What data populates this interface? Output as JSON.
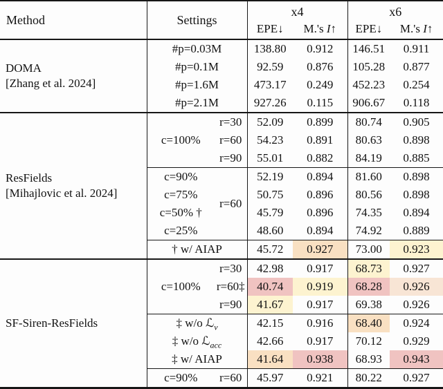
{
  "header": {
    "method": "Method",
    "settings": "Settings",
    "scale4": "x4",
    "scale6": "x6",
    "epe": "EPE↓",
    "m_pre": "M.'s ",
    "m_italic": "I",
    "m_arrow": "↑"
  },
  "methods": [
    {
      "name": "DOMA",
      "cite": "[Zhang et al. 2024]"
    },
    {
      "name": "ResFields",
      "cite": "[Mihajlovic et al. 2024]"
    },
    {
      "name": "SF-Siren-ResFields",
      "cite": ""
    }
  ],
  "spans": {
    "res_c100": "c=100%",
    "res_r60": "r=60",
    "sf_c100": "c=100%"
  },
  "rows": [
    {
      "set": "#p=0.03M",
      "epe4": "138.80",
      "m4": "0.912",
      "epe6": "146.51",
      "m6": "0.911"
    },
    {
      "set": "#p=0.1M",
      "epe4": "92.59",
      "m4": "0.876",
      "epe6": "105.28",
      "m6": "0.877"
    },
    {
      "set": "#p=1.6M",
      "epe4": "473.17",
      "m4": "0.249",
      "epe6": "452.23",
      "m6": "0.254"
    },
    {
      "set": "#p=2.1M",
      "epe4": "927.26",
      "m4": "0.115",
      "epe6": "906.67",
      "m6": "0.118"
    },
    {
      "setr": "r=30",
      "epe4": "52.09",
      "m4": "0.899",
      "epe6": "80.74",
      "m6": "0.905"
    },
    {
      "setr": "r=60",
      "epe4": "54.23",
      "m4": "0.891",
      "epe6": "80.63",
      "m6": "0.898"
    },
    {
      "setr": "r=90",
      "epe4": "55.01",
      "m4": "0.882",
      "epe6": "84.19",
      "m6": "0.885"
    },
    {
      "setc": "c=90%",
      "epe4": "52.19",
      "m4": "0.894",
      "epe6": "81.60",
      "m6": "0.898"
    },
    {
      "setc": "c=75%",
      "epe4": "50.75",
      "m4": "0.896",
      "epe6": "80.56",
      "m6": "0.898"
    },
    {
      "setc": "c=50% †",
      "epe4": "45.79",
      "m4": "0.896",
      "epe6": "74.35",
      "m6": "0.894"
    },
    {
      "setc": "c=25%",
      "epe4": "48.60",
      "m4": "0.894",
      "epe6": "74.92",
      "m6": "0.889"
    },
    {
      "set": "† w/ AIAP",
      "epe4": "45.72",
      "m4": "0.927",
      "epe6": "73.00",
      "m6": "0.923"
    },
    {
      "setr": "r=30",
      "epe4": "42.98",
      "m4": "0.917",
      "epe6": "68.73",
      "m6": "0.927"
    },
    {
      "setr": "r=60‡",
      "epe4": "40.74",
      "m4": "0.919",
      "epe6": "68.28",
      "m6": "0.926"
    },
    {
      "setr": "r=90",
      "epe4": "41.67",
      "m4": "0.917",
      "epe6": "69.38",
      "m6": "0.926"
    },
    {
      "set_main": "‡ w/o ℒ",
      "set_sub": "v",
      "epe4": "42.15",
      "m4": "0.916",
      "epe6": "68.40",
      "m6": "0.924"
    },
    {
      "set_main": "‡ w/o ℒ",
      "set_sub": "acc",
      "epe4": "42.66",
      "m4": "0.917",
      "epe6": "70.12",
      "m6": "0.929"
    },
    {
      "set": "‡ w/ AIAP",
      "epe4": "41.64",
      "m4": "0.938",
      "epe6": "68.93",
      "m6": "0.943"
    },
    {
      "setc": "c=90%",
      "setr": "r=60",
      "epe4": "45.97",
      "m4": "0.921",
      "epe6": "80.22",
      "m6": "0.927"
    }
  ],
  "colors": {
    "pink": "#f0c3c1",
    "yellow": "#fdf3d0",
    "orange": "#f9e0c2",
    "peach": "#f8e5d5"
  }
}
